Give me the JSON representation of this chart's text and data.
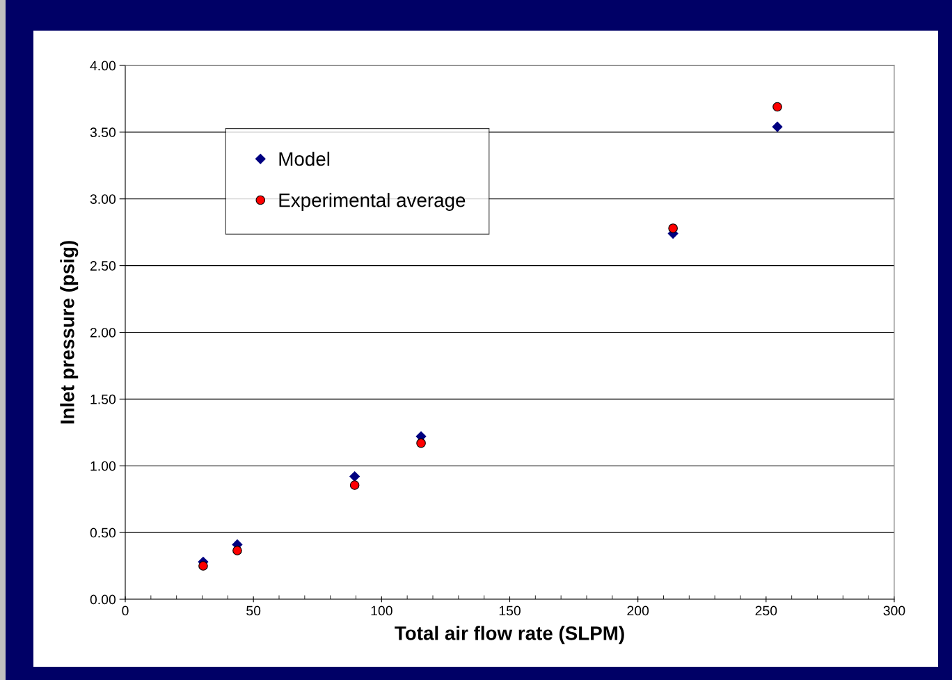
{
  "chart_data": {
    "type": "scatter",
    "xlabel": "Total air flow rate (SLPM)",
    "ylabel": "Inlet pressure (psig)",
    "xlim": [
      0,
      300
    ],
    "xticks": [
      0,
      50,
      100,
      150,
      200,
      250,
      300
    ],
    "ylim": [
      0,
      4
    ],
    "yticks": [
      {
        "value": 0,
        "label": "0.00"
      },
      {
        "value": 0.5,
        "label": "0.50"
      },
      {
        "value": 1,
        "label": "1.00"
      },
      {
        "value": 1.5,
        "label": "1.50"
      },
      {
        "value": 2,
        "label": "2.00"
      },
      {
        "value": 2.5,
        "label": "2.50"
      },
      {
        "value": 3,
        "label": "3.00"
      },
      {
        "value": 3.5,
        "label": "3.50"
      },
      {
        "value": 4,
        "label": "4.00"
      }
    ],
    "grid": "y",
    "legend": "top left",
    "series": [
      {
        "name": "Model",
        "color": "#000080",
        "marker": "diamond",
        "x": [
          30.4,
          43.7,
          89.5,
          115.4,
          213.7,
          254.4
        ],
        "values": [
          0.28,
          0.41,
          0.92,
          1.22,
          2.74,
          3.54
        ]
      },
      {
        "name": "Experimental average",
        "color": "#ff0000",
        "marker": "circle",
        "x": [
          30.4,
          43.7,
          89.5,
          115.4,
          213.7,
          254.4
        ],
        "values": [
          0.25,
          0.365,
          0.855,
          1.17,
          2.78,
          3.69
        ]
      }
    ]
  }
}
